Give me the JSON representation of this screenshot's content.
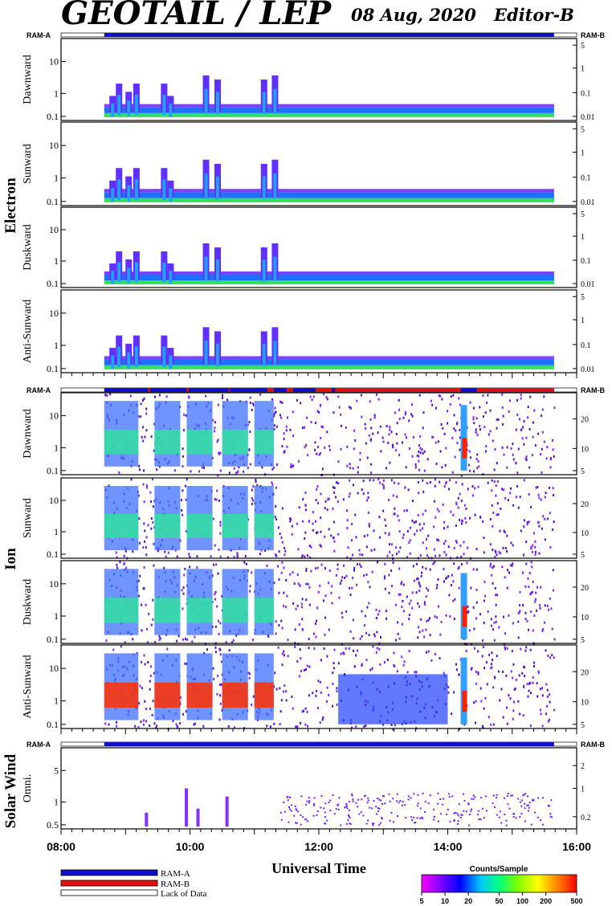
{
  "header": {
    "title": "GEOTAIL / LEP",
    "date": "08 Aug, 2020",
    "editor": "Editor-B"
  },
  "colors": {
    "ram_a": "#1010c8",
    "ram_b": "#e01010",
    "lack": "#ffffff"
  },
  "chart_data": {
    "type": "heatmap",
    "x_axis": {
      "label": "Universal Time",
      "ticks": [
        "08:00",
        "10:00",
        "12:00",
        "14:00",
        "16:00"
      ],
      "range_hours": [
        8,
        16
      ],
      "data_start_hours": 8.67,
      "data_end_hours": 15.65
    },
    "ram_strip_labels": {
      "left": "RAM-A",
      "right": "RAM-B"
    },
    "groups": [
      {
        "name": "Electron",
        "ram_b_intervals": [],
        "panels": [
          {
            "name": "Dawnward",
            "yticks": [
              "10",
              "1",
              "0.1"
            ],
            "right_ticks": [
              "5",
              "1",
              "0.1",
              "0.01"
            ]
          },
          {
            "name": "Sunward",
            "yticks": [
              "10",
              "1",
              "0.1"
            ],
            "right_ticks": [
              "5",
              "1",
              "0.1",
              "0.01"
            ]
          },
          {
            "name": "Duskward",
            "yticks": [
              "10",
              "1",
              "0.1"
            ],
            "right_ticks": [
              "5",
              "1",
              "0.1",
              "0.01"
            ]
          },
          {
            "name": "Anti-Sunward",
            "yticks": [
              "10",
              "1",
              "0.1"
            ],
            "right_ticks": [
              "5",
              "1",
              "0.1",
              "0.01"
            ]
          }
        ]
      },
      {
        "name": "Ion",
        "ram_b_intervals": [
          [
            9.35,
            9.38
          ],
          [
            9.95,
            9.98
          ],
          [
            10.6,
            10.62
          ],
          [
            11.2,
            11.3
          ],
          [
            11.5,
            11.6
          ],
          [
            11.95,
            12.2
          ],
          [
            12.25,
            14.2
          ],
          [
            14.45,
            15.65
          ]
        ],
        "panels": [
          {
            "name": "Dawnward",
            "yticks": [
              "10",
              "1",
              "0.1"
            ],
            "right_ticks": [
              "20",
              "10",
              "5"
            ]
          },
          {
            "name": "Sunward",
            "yticks": [
              "10",
              "1",
              "0.1"
            ],
            "right_ticks": [
              "20",
              "10",
              "5"
            ]
          },
          {
            "name": "Duskward",
            "yticks": [
              "10",
              "1",
              "0.1"
            ],
            "right_ticks": [
              "20",
              "10",
              "5"
            ]
          },
          {
            "name": "Anti-Sunward",
            "yticks": [
              "10",
              "1",
              "0.1"
            ],
            "right_ticks": [
              "20",
              "10",
              "5"
            ]
          }
        ]
      },
      {
        "name": "Solar Wind",
        "ram_b_intervals": [],
        "panels": [
          {
            "name": "Omni.",
            "yticks": [
              "5",
              "1",
              "0.5"
            ],
            "right_ticks": [
              "2",
              "1",
              "0.2"
            ]
          }
        ]
      }
    ],
    "legend": [
      {
        "label": "RAM-A",
        "color": "#1010c8"
      },
      {
        "label": "RAM-B",
        "color": "#e01010"
      },
      {
        "label": "Lack of Data",
        "color": "#ffffff"
      }
    ],
    "colorbar": {
      "title": "Counts/Sample",
      "ticks": [
        "5",
        "10",
        "20",
        "50",
        "100",
        "200",
        "500"
      ],
      "scale": "log",
      "range": [
        5,
        500
      ]
    }
  }
}
